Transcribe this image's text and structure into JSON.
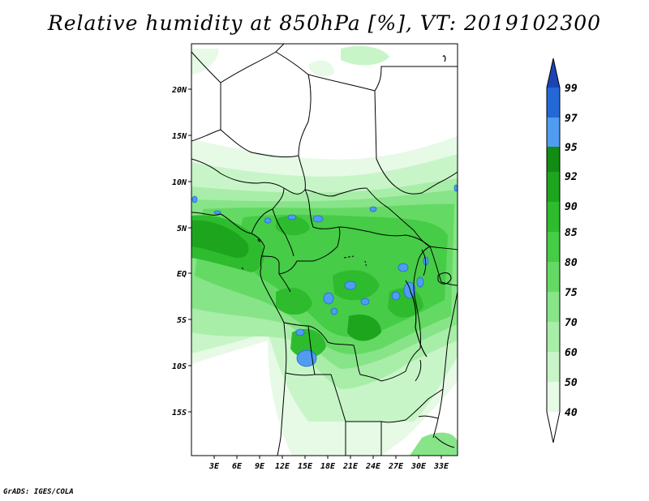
{
  "title": "Relative humidity at 850hPa [%], VT: 2019102300",
  "footer": "GrADS: IGES/COLA",
  "map": {
    "lon_labels": [
      "3E",
      "6E",
      "9E",
      "12E",
      "15E",
      "18E",
      "21E",
      "24E",
      "27E",
      "30E",
      "33E"
    ],
    "lat_labels": [
      "20N",
      "15N",
      "10N",
      "5N",
      "EQ",
      "5S",
      "10S",
      "15S"
    ]
  },
  "colorbar": {
    "levels": [
      "40",
      "50",
      "60",
      "70",
      "75",
      "80",
      "85",
      "90",
      "92",
      "95",
      "97",
      "99"
    ],
    "colors": [
      "#ffffff",
      "#e6fae6",
      "#c8f5c8",
      "#a8eda8",
      "#88e488",
      "#64da64",
      "#46cc46",
      "#2ebc2e",
      "#1ea51e",
      "#138c13",
      "#4f9cf0",
      "#2468d8",
      "#1a44b4"
    ]
  }
}
